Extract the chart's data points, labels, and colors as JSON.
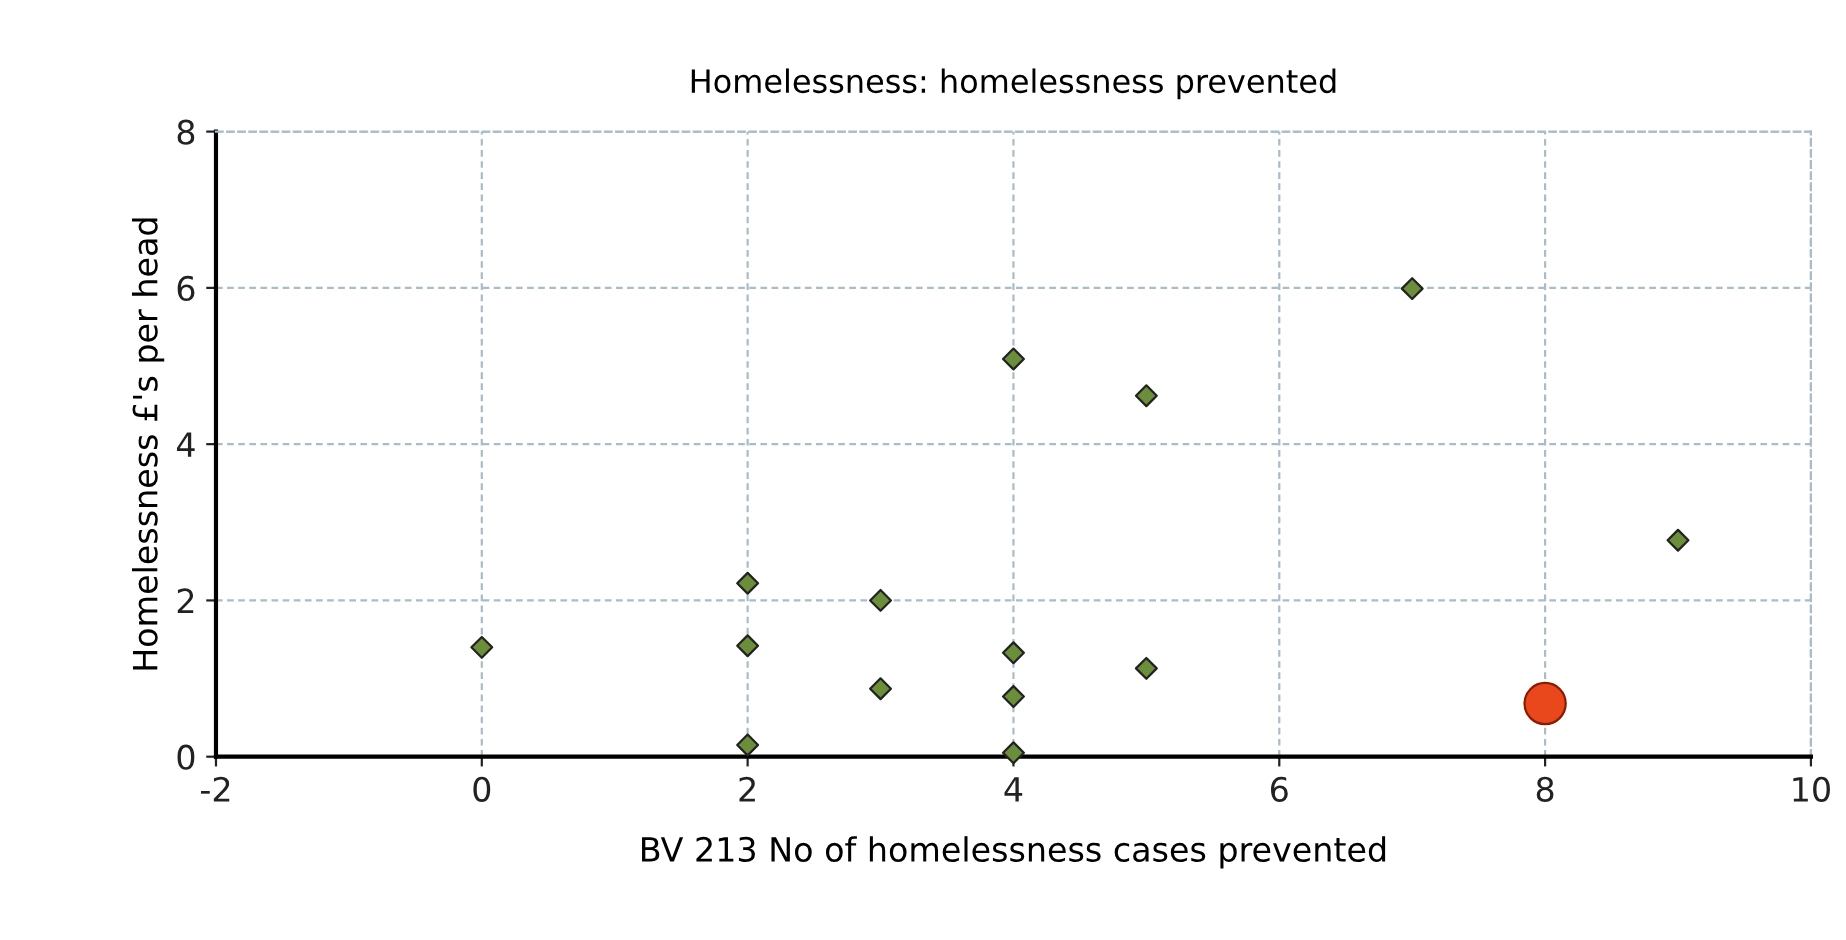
{
  "chart_data": {
    "type": "scatter",
    "title": "Homelessness: homelessness prevented",
    "xlabel": "BV 213 No of homelessness cases prevented",
    "ylabel": "Homelessness £'s per head",
    "series": [
      {
        "color": "#6b8e3a",
        "marker": "diamond",
        "x": [
          0,
          2,
          2,
          2,
          3,
          3,
          4,
          4,
          4,
          4,
          5,
          5,
          7,
          9
        ],
        "values": [
          1.4,
          2.22,
          1.42,
          0.15,
          2.0,
          0.87,
          5.09,
          1.33,
          0.77,
          0.05,
          4.62,
          1.13,
          5.99,
          2.77
        ]
      },
      {
        "color": "#e8481c",
        "marker": "circle",
        "x": [
          8
        ],
        "values": [
          0.68
        ]
      }
    ],
    "xlim": [
      -2,
      10
    ],
    "xticks": [
      -2,
      0,
      2,
      4,
      6,
      8,
      10
    ],
    "ylim": [
      0,
      8
    ],
    "yticks": [
      0,
      2,
      4,
      6,
      8
    ],
    "grid": true,
    "legend": false
  }
}
